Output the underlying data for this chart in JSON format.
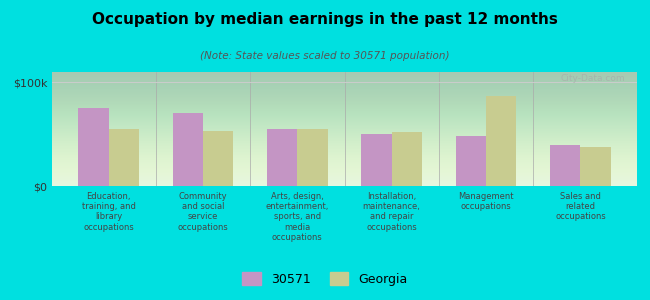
{
  "title": "Occupation by median earnings in the past 12 months",
  "subtitle": "(Note: State values scaled to 30571 population)",
  "categories": [
    "Education,\ntraining, and\nlibrary\noccupations",
    "Community\nand social\nservice\noccupations",
    "Arts, design,\nentertainment,\nsports, and\nmedia\noccupations",
    "Installation,\nmaintenance,\nand repair\noccupations",
    "Management\noccupations",
    "Sales and\nrelated\noccupations"
  ],
  "values_30571": [
    75000,
    70000,
    55000,
    50000,
    48000,
    40000
  ],
  "values_georgia": [
    55000,
    53000,
    55000,
    52000,
    87000,
    38000
  ],
  "color_30571": "#c495c4",
  "color_georgia": "#c8cc90",
  "ylim": [
    0,
    110000
  ],
  "ytick_labels": [
    "$0",
    "$100k"
  ],
  "background_color": "#dff5df",
  "fig_background": "#00e0e0",
  "watermark": "City-Data.com",
  "legend_label_30571": "30571",
  "legend_label_georgia": "Georgia"
}
